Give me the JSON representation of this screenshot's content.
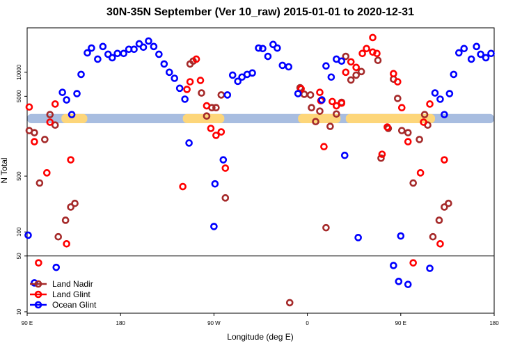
{
  "chart_data": {
    "type": "scatter",
    "title": "30N-35N September (Ver 10_raw)   2015-01-01 to 2020-12-31",
    "x_label": "Longitude (deg E)",
    "y_label": "N Total",
    "xlim": [
      90,
      540
    ],
    "xticks": [
      {
        "value": 90,
        "label": "90 E"
      },
      180,
      {
        "value": 270,
        "label": "90 W"
      },
      {
        "value": 360,
        "label": "0"
      },
      {
        "value": 450,
        "label": "90 E"
      },
      {
        "value": 540,
        "label": "180"
      }
    ],
    "ylim": [
      9.6,
      36000
    ],
    "yticks": [
      10,
      50,
      100,
      500,
      5000,
      10000
    ],
    "log_y": true,
    "panel_split": 50,
    "legend": "lower left",
    "bands": [
      {
        "color": "#a8bde0",
        "from": 90,
        "to": 540,
        "low": 2300,
        "high": 3000
      },
      {
        "color": "#fdd67a",
        "from": 123,
        "to": 148,
        "low": 2300,
        "high": 3000
      },
      {
        "color": "#fdd67a",
        "from": 240,
        "to": 280,
        "low": 2300,
        "high": 3000
      },
      {
        "color": "#fdd67a",
        "from": 351,
        "to": 392,
        "low": 2300,
        "high": 3000
      },
      {
        "color": "#fdd67a",
        "from": 397,
        "to": 483,
        "low": 2300,
        "high": 3000
      }
    ],
    "series": [
      {
        "name": "Land Nadir",
        "color": "#a52a2a",
        "x": [
          92,
          97,
          102,
          107,
          112,
          117,
          120,
          127,
          132,
          136,
          247,
          250,
          258,
          263,
          268,
          272,
          277,
          281,
          353,
          357,
          363,
          364,
          368,
          372,
          378,
          382,
          388,
          393,
          397,
          402,
          407,
          412,
          428,
          431,
          438,
          443,
          447,
          451,
          457,
          462,
          468,
          473,
          476,
          481,
          487,
          492,
          496,
          343
        ],
        "values": [
          1860,
          1750,
          410,
          1440,
          2950,
          2180,
          87,
          140,
          205,
          228,
          12700,
          13800,
          5500,
          2830,
          3600,
          3600,
          5200,
          267,
          6400,
          5300,
          5200,
          3600,
          2410,
          3260,
          113,
          2100,
          3000,
          4200,
          15800,
          8000,
          9200,
          10200,
          14100,
          840,
          1980,
          8200,
          4700,
          1860,
          1750,
          410,
          1440,
          2950,
          2180,
          87,
          140,
          205,
          228,
          13
        ]
      },
      {
        "name": "Land Glint",
        "color": "#ff0000",
        "x": [
          92,
          97,
          101,
          109,
          112,
          117,
          128,
          132,
          240,
          244,
          247,
          253,
          257,
          263,
          267,
          272,
          277,
          281,
          354,
          372,
          373,
          376,
          384,
          388,
          393,
          397,
          402,
          407,
          413,
          417,
          423,
          423,
          427,
          432,
          437,
          443,
          447,
          451,
          457,
          462,
          469,
          472,
          478,
          488,
          492
        ],
        "values": [
          3670,
          1350,
          41,
          550,
          2370,
          4000,
          71,
          800,
          370,
          6100,
          7600,
          14600,
          7900,
          3800,
          1980,
          1620,
          1790,
          630,
          6200,
          5600,
          4400,
          1170,
          4300,
          3800,
          4100,
          10000,
          13500,
          11500,
          17200,
          19800,
          27200,
          17900,
          17200,
          940,
          2060,
          9600,
          7600,
          3600,
          1350,
          41,
          550,
          2370,
          4000,
          71,
          800
        ]
      },
      {
        "name": "Ocean Glint",
        "color": "#0000ff",
        "x": [
          91,
          97,
          118,
          124,
          128,
          133,
          138,
          142,
          148,
          152,
          158,
          163,
          168,
          172,
          177,
          183,
          188,
          193,
          198,
          202,
          207,
          212,
          217,
          222,
          227,
          232,
          237,
          242,
          246,
          271,
          270,
          279,
          283,
          288,
          293,
          297,
          302,
          307,
          313,
          317,
          322,
          327,
          331,
          336,
          342,
          351,
          374,
          378,
          383,
          388,
          393,
          396,
          409,
          443,
          448,
          450,
          457,
          478,
          483,
          488,
          492,
          497,
          501,
          506,
          511,
          518,
          523,
          527,
          532,
          537
        ],
        "values": [
          91,
          23,
          36,
          5600,
          4500,
          2950,
          5400,
          9400,
          17500,
          20100,
          14600,
          21000,
          16800,
          15200,
          17200,
          17200,
          19400,
          19400,
          22700,
          20600,
          24600,
          21000,
          16800,
          12700,
          10000,
          8400,
          6300,
          4600,
          1300,
          400,
          117,
          800,
          5200,
          9200,
          7700,
          8700,
          9400,
          9800,
          20100,
          19800,
          15800,
          22300,
          20100,
          12200,
          11700,
          5400,
          4500,
          12000,
          8700,
          14600,
          13800,
          910,
          85,
          38,
          24,
          89,
          22,
          35,
          5500,
          4600,
          2950,
          5400,
          9400,
          17500,
          19800,
          14600,
          21000,
          16800,
          15200,
          17200
        ]
      }
    ]
  }
}
